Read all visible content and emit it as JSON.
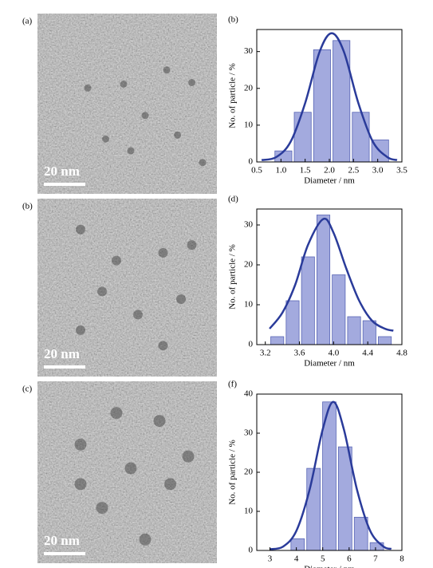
{
  "images": [
    {
      "label": "(a)",
      "scale_bar": "20 nm"
    },
    {
      "label": "(b)",
      "scale_bar": "20 nm"
    },
    {
      "label": "(c)",
      "scale_bar": "20 nm"
    }
  ],
  "chart_data": [
    {
      "type": "histogram",
      "panel_label": "(b)",
      "xlabel": "Diameter / nm",
      "ylabel": "No. of particle / %",
      "bins": [
        0.85,
        1.25,
        1.65,
        2.05,
        2.45,
        2.85,
        3.25
      ],
      "counts": [
        3,
        13.5,
        30.5,
        33,
        13.5,
        6
      ],
      "color": "#a3aade",
      "edge_color": "#5865b5",
      "xlim": [
        0.5,
        3.5
      ],
      "xticks": [
        0.5,
        {
          "value": 1,
          "label": "1.0"
        },
        1.5,
        {
          "value": 2,
          "label": "2.0"
        },
        2.5,
        {
          "value": 3,
          "label": "3.0"
        },
        3.5
      ],
      "ylim": [
        0,
        36
      ],
      "yticks": [
        0,
        10,
        20,
        30
      ],
      "fit": {
        "x": [
          0.6,
          0.9,
          1.2,
          1.5,
          1.8,
          2.05,
          2.3,
          2.6,
          2.9,
          3.2,
          3.4
        ],
        "values": [
          0.5,
          1.3,
          5.5,
          16,
          30,
          35,
          30,
          16,
          5.5,
          1.3,
          0.5
        ],
        "color": "#2a3b9a"
      }
    },
    {
      "type": "histogram",
      "panel_label": "(d)",
      "xlabel": "Diameter / nm",
      "ylabel": "No. of particle / %",
      "bins": [
        3.25,
        3.43,
        3.61,
        3.79,
        3.97,
        4.15,
        4.33,
        4.51,
        4.69
      ],
      "counts": [
        2,
        11,
        22,
        32.5,
        17.5,
        7,
        6,
        2
      ],
      "color": "#a3aade",
      "edge_color": "#5865b5",
      "xlim": [
        3.1,
        4.8
      ],
      "xticks": [
        3.2,
        3.6,
        {
          "value": 4,
          "label": "4.0"
        },
        4.4,
        4.8
      ],
      "ylim": [
        0,
        34
      ],
      "yticks": [
        0,
        10,
        20,
        30
      ],
      "fit": {
        "x": [
          3.25,
          3.4,
          3.55,
          3.7,
          3.88,
          4.0,
          4.15,
          4.3,
          4.45,
          4.6,
          4.7
        ],
        "values": [
          4,
          8,
          15,
          25,
          31.5,
          28,
          19,
          11,
          6,
          4,
          3.5
        ],
        "color": "#2a3b9a"
      }
    },
    {
      "type": "histogram",
      "panel_label": "(f)",
      "xlabel": "Diameter / nm",
      "ylabel": "No. of particle / %",
      "bins": [
        3.75,
        4.35,
        4.95,
        5.55,
        6.15,
        6.75,
        7.35
      ],
      "counts": [
        3,
        21,
        38,
        26.5,
        8.5,
        2
      ],
      "color": "#a3aade",
      "edge_color": "#5865b5",
      "xlim": [
        2.5,
        8
      ],
      "xticks": [
        3,
        4,
        5,
        6,
        7,
        8
      ],
      "ylim": [
        0,
        40
      ],
      "yticks": [
        0,
        10,
        20,
        30,
        40
      ],
      "fit": {
        "x": [
          3.0,
          3.5,
          4.0,
          4.5,
          5.0,
          5.4,
          5.8,
          6.3,
          6.8,
          7.3,
          7.6
        ],
        "values": [
          0.3,
          1,
          5,
          15.5,
          31,
          38,
          31,
          15.5,
          5,
          1,
          0.4
        ],
        "color": "#2a3b9a"
      }
    }
  ]
}
